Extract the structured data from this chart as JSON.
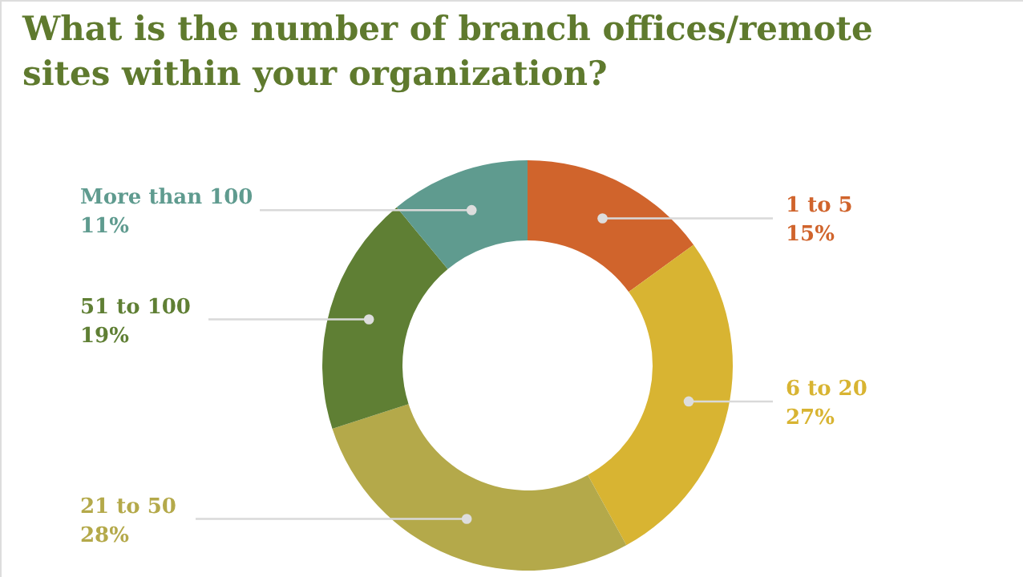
{
  "chart_data": {
    "type": "donut",
    "title": "What is the number of branch offices/remote sites within your organization?",
    "categories": [
      "1 to 5",
      "6 to 20",
      "21 to 50",
      "51 to 100",
      "More than 100"
    ],
    "values": [
      15,
      27,
      28,
      19,
      11
    ],
    "value_labels": [
      "15%",
      "27%",
      "28%",
      "19%",
      "11%"
    ],
    "colors": [
      "#d0642c",
      "#d8b432",
      "#b4a94a",
      "#5f7f34",
      "#5f9b8f"
    ]
  }
}
